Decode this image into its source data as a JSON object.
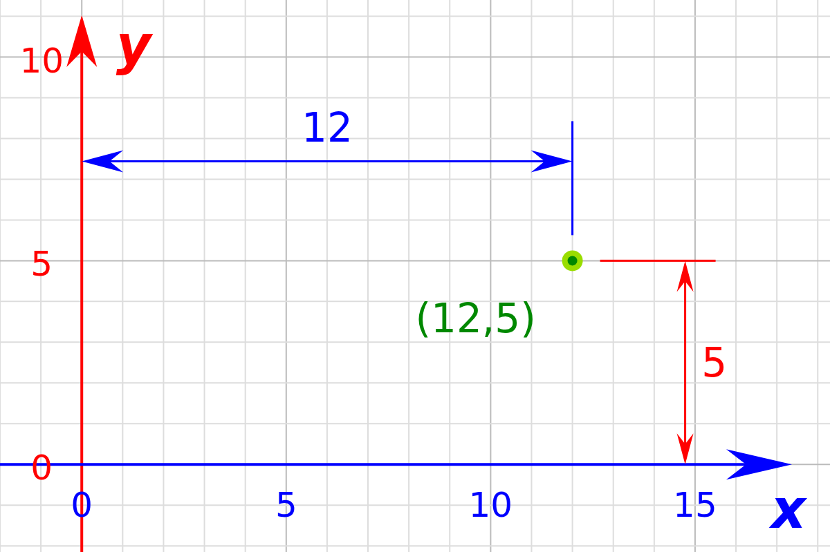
{
  "chart_data": {
    "type": "scatter",
    "xlabel": "x",
    "ylabel": "y",
    "xlim": [
      -2,
      18.3
    ],
    "ylim": [
      -2.15,
      11.4
    ],
    "xticks": [
      0,
      5,
      10,
      15
    ],
    "yticks": [
      0,
      5,
      10
    ],
    "grid": true,
    "marker": "circle",
    "series": [
      {
        "x": [
          12
        ],
        "values": [
          5
        ],
        "color": "#99dd00"
      }
    ],
    "annotations": [
      "12",
      "5",
      {
        "text": "(12,5)",
        "x": 12,
        "y": 5
      }
    ]
  }
}
